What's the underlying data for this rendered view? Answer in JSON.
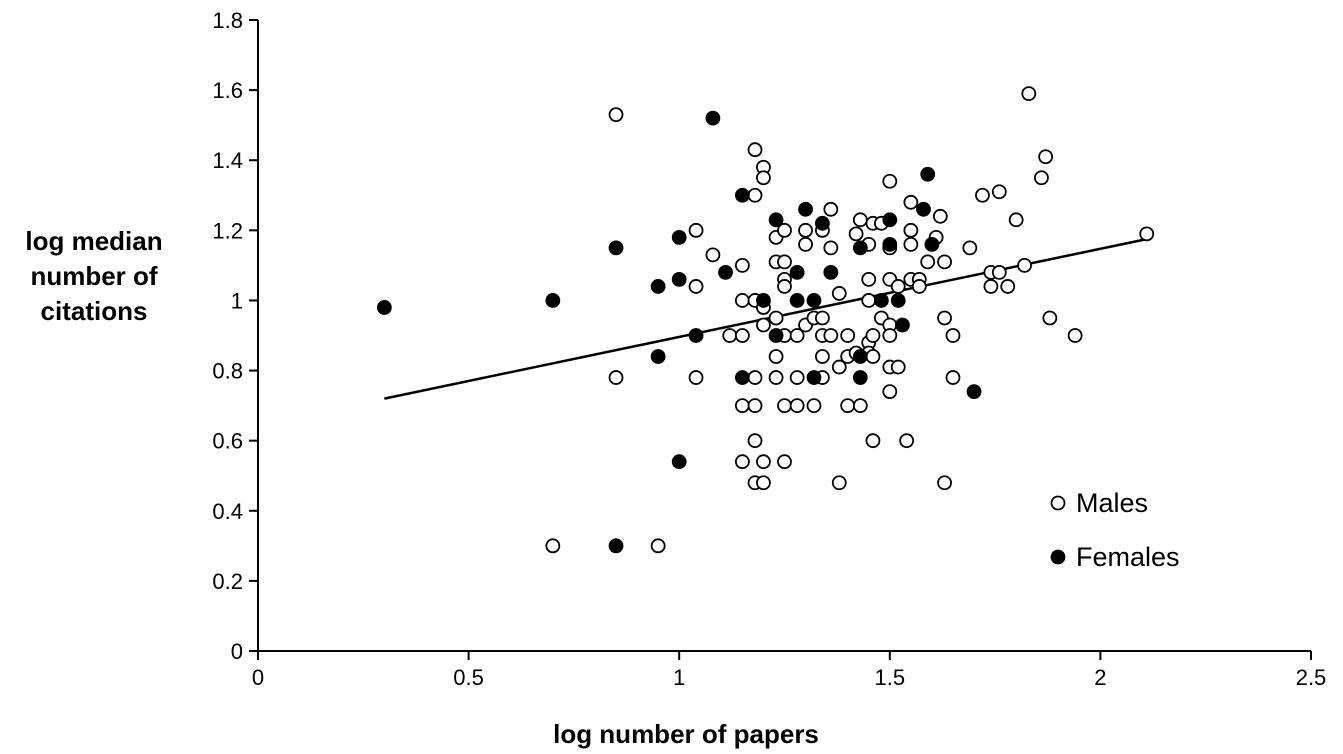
{
  "chart_data": {
    "type": "scatter",
    "xlabel": "log number of papers",
    "ylabel": [
      "log median",
      "number of",
      "citations"
    ],
    "xlim": [
      0,
      2.5
    ],
    "ylim": [
      0,
      1.8
    ],
    "x_ticks": [
      "0",
      "0.5",
      "1",
      "1.5",
      "2",
      "2.5"
    ],
    "y_ticks": [
      "0",
      "0.2",
      "0.4",
      "0.6",
      "0.8",
      "1",
      "1.2",
      "1.4",
      "1.6",
      "1.8"
    ],
    "grid": false,
    "legend_position": "bottom-right",
    "trendline": {
      "x": [
        0.3,
        2.11
      ],
      "y": [
        0.72,
        1.175
      ]
    },
    "series": [
      {
        "name": "Males",
        "marker": "open-circle",
        "points": [
          [
            0.85,
            1.53
          ],
          [
            0.85,
            0.78
          ],
          [
            0.7,
            0.3
          ],
          [
            0.95,
            0.3
          ],
          [
            1.04,
            1.2
          ],
          [
            1.04,
            1.04
          ],
          [
            1.04,
            0.78
          ],
          [
            1.08,
            1.13
          ],
          [
            1.12,
            0.9
          ],
          [
            1.15,
            1.1
          ],
          [
            1.15,
            1.0
          ],
          [
            1.15,
            0.9
          ],
          [
            1.15,
            0.7
          ],
          [
            1.15,
            0.54
          ],
          [
            1.18,
            1.43
          ],
          [
            1.18,
            1.3
          ],
          [
            1.18,
            1.0
          ],
          [
            1.18,
            0.78
          ],
          [
            1.18,
            0.7
          ],
          [
            1.18,
            0.6
          ],
          [
            1.18,
            0.48
          ],
          [
            1.2,
            1.38
          ],
          [
            1.2,
            1.35
          ],
          [
            1.2,
            0.98
          ],
          [
            1.2,
            0.93
          ],
          [
            1.2,
            0.54
          ],
          [
            1.2,
            0.48
          ],
          [
            1.23,
            1.18
          ],
          [
            1.23,
            1.11
          ],
          [
            1.23,
            0.95
          ],
          [
            1.23,
            0.84
          ],
          [
            1.23,
            0.78
          ],
          [
            1.25,
            1.2
          ],
          [
            1.25,
            1.11
          ],
          [
            1.25,
            1.06
          ],
          [
            1.25,
            1.04
          ],
          [
            1.25,
            0.9
          ],
          [
            1.25,
            0.7
          ],
          [
            1.25,
            0.54
          ],
          [
            1.28,
            0.9
          ],
          [
            1.28,
            0.78
          ],
          [
            1.28,
            0.7
          ],
          [
            1.3,
            1.2
          ],
          [
            1.3,
            1.16
          ],
          [
            1.3,
            0.93
          ],
          [
            1.32,
            0.95
          ],
          [
            1.32,
            0.7
          ],
          [
            1.34,
            1.2
          ],
          [
            1.34,
            0.95
          ],
          [
            1.34,
            0.9
          ],
          [
            1.34,
            0.84
          ],
          [
            1.34,
            0.78
          ],
          [
            1.36,
            1.26
          ],
          [
            1.36,
            1.15
          ],
          [
            1.36,
            0.9
          ],
          [
            1.38,
            1.02
          ],
          [
            1.38,
            0.81
          ],
          [
            1.38,
            0.48
          ],
          [
            1.4,
            0.9
          ],
          [
            1.4,
            0.84
          ],
          [
            1.4,
            0.7
          ],
          [
            1.42,
            1.19
          ],
          [
            1.42,
            0.85
          ],
          [
            1.43,
            1.23
          ],
          [
            1.43,
            0.7
          ],
          [
            1.45,
            1.16
          ],
          [
            1.45,
            1.06
          ],
          [
            1.45,
            1.0
          ],
          [
            1.45,
            0.88
          ],
          [
            1.45,
            0.85
          ],
          [
            1.46,
            1.22
          ],
          [
            1.46,
            0.9
          ],
          [
            1.46,
            0.84
          ],
          [
            1.46,
            0.6
          ],
          [
            1.48,
            1.22
          ],
          [
            1.48,
            0.95
          ],
          [
            1.5,
            1.34
          ],
          [
            1.5,
            1.15
          ],
          [
            1.5,
            1.06
          ],
          [
            1.5,
            0.93
          ],
          [
            1.5,
            0.9
          ],
          [
            1.5,
            0.81
          ],
          [
            1.5,
            0.74
          ],
          [
            1.52,
            1.04
          ],
          [
            1.52,
            0.81
          ],
          [
            1.54,
            0.6
          ],
          [
            1.55,
            1.28
          ],
          [
            1.55,
            1.2
          ],
          [
            1.55,
            1.16
          ],
          [
            1.55,
            1.06
          ],
          [
            1.57,
            1.06
          ],
          [
            1.57,
            1.04
          ],
          [
            1.59,
            1.11
          ],
          [
            1.61,
            1.18
          ],
          [
            1.62,
            1.24
          ],
          [
            1.63,
            1.11
          ],
          [
            1.63,
            0.95
          ],
          [
            1.63,
            0.48
          ],
          [
            1.65,
            0.9
          ],
          [
            1.65,
            0.78
          ],
          [
            1.69,
            1.15
          ],
          [
            1.72,
            1.3
          ],
          [
            1.74,
            1.08
          ],
          [
            1.74,
            1.04
          ],
          [
            1.76,
            1.31
          ],
          [
            1.76,
            1.08
          ],
          [
            1.78,
            1.04
          ],
          [
            1.8,
            1.23
          ],
          [
            1.82,
            1.1
          ],
          [
            1.83,
            1.59
          ],
          [
            1.86,
            1.35
          ],
          [
            1.87,
            1.41
          ],
          [
            1.88,
            0.95
          ],
          [
            1.94,
            0.9
          ],
          [
            2.11,
            1.19
          ]
        ]
      },
      {
        "name": "Females",
        "marker": "filled-circle",
        "points": [
          [
            0.3,
            0.98
          ],
          [
            0.7,
            1.0
          ],
          [
            0.85,
            1.15
          ],
          [
            0.85,
            0.3
          ],
          [
            0.95,
            1.04
          ],
          [
            0.95,
            0.84
          ],
          [
            1.0,
            1.18
          ],
          [
            1.0,
            1.06
          ],
          [
            1.0,
            0.54
          ],
          [
            1.04,
            0.9
          ],
          [
            1.08,
            1.52
          ],
          [
            1.11,
            1.08
          ],
          [
            1.15,
            1.3
          ],
          [
            1.15,
            0.78
          ],
          [
            1.2,
            1.0
          ],
          [
            1.23,
            1.23
          ],
          [
            1.23,
            0.9
          ],
          [
            1.28,
            1.08
          ],
          [
            1.28,
            1.0
          ],
          [
            1.3,
            1.26
          ],
          [
            1.32,
            1.0
          ],
          [
            1.32,
            0.78
          ],
          [
            1.34,
            1.22
          ],
          [
            1.36,
            1.08
          ],
          [
            1.43,
            1.15
          ],
          [
            1.43,
            0.84
          ],
          [
            1.43,
            0.78
          ],
          [
            1.48,
            1.0
          ],
          [
            1.5,
            1.23
          ],
          [
            1.5,
            1.16
          ],
          [
            1.52,
            1.0
          ],
          [
            1.53,
            0.93
          ],
          [
            1.58,
            1.26
          ],
          [
            1.59,
            1.36
          ],
          [
            1.6,
            1.16
          ],
          [
            1.7,
            0.74
          ]
        ]
      }
    ]
  }
}
